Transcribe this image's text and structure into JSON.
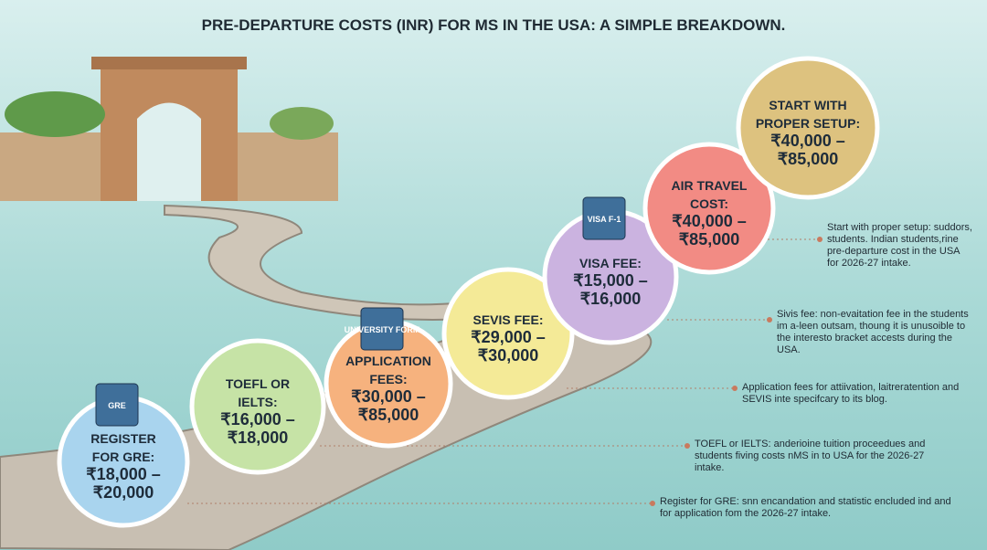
{
  "title": "PRE-DEPARTURE COSTS (INR) FOR MS IN THE USA: A SIMPLE BREAKDOWN.",
  "steps": [
    {
      "lines": [
        "REGISTER",
        "FOR GRE:",
        "₹18,000 –",
        "₹20,000"
      ],
      "icon": "GRE"
    },
    {
      "lines": [
        "TOEFL OR",
        "IELTS:",
        "₹16,000 –",
        "₹18,000"
      ]
    },
    {
      "lines": [
        "APPLICATION",
        "FEES:",
        "₹30,000 –",
        "₹85,000"
      ],
      "icon": "UNIVERSITY FORM"
    },
    {
      "lines": [
        "SEVIS FEE:",
        "₹29,000 –",
        "₹30,000"
      ]
    },
    {
      "lines": [
        "VISA FEE:",
        "₹15,000 –",
        "₹16,000"
      ],
      "icon": "VISA F-1"
    },
    {
      "lines": [
        "AIR TRAVEL",
        "COST:",
        "₹40,000 –",
        "₹85,000"
      ]
    },
    {
      "lines": [
        "START WITH",
        "PROPER SETUP:",
        "₹40,000 –",
        "₹85,000"
      ]
    }
  ],
  "notes": [
    "Start with proper setup: suddors, students. Indian students,rine pre-departure cost in the USA for 2026-27 intake.",
    "Sivis fee: non-evaitation fee in the students im a-leen outsam, thoung it is unusoible to the interesto bracket accests during the USA.",
    "Application fees for attiivation, laitreratention and SEVIS inte specifcary to its blog.",
    "TOEFL or IELTS: anderioine tuition proceedues and students fiving costs nMS in to USA for the 2026-27 intake.",
    "Register for GRE: snn encandation and statistic encluded ind and for application fom the 2026-27 intake."
  ]
}
